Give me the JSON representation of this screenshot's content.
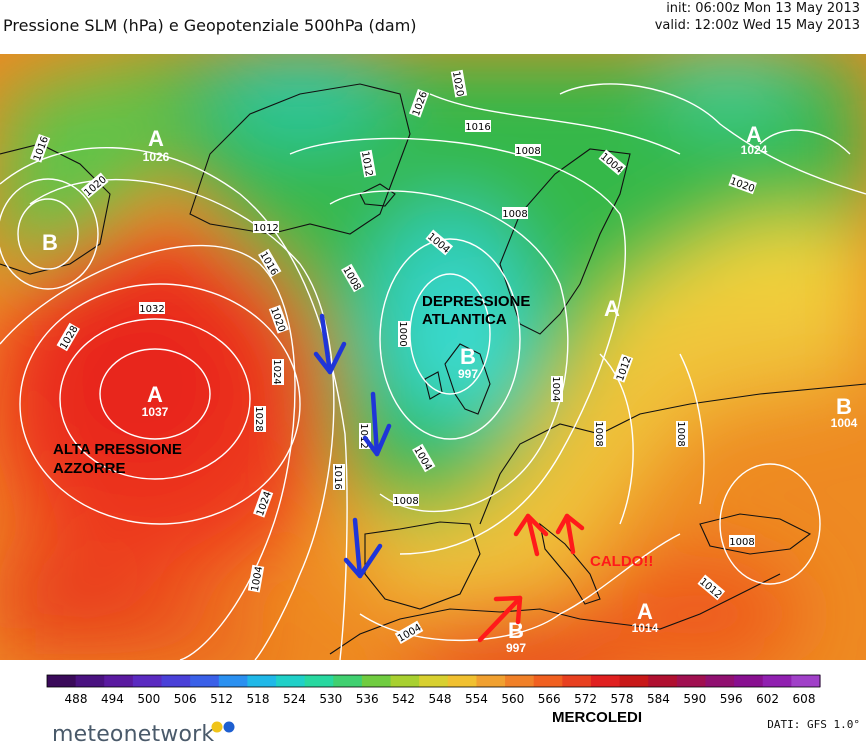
{
  "header": {
    "title": "Pressione SLM (hPa) e Geopotenziale 500hPa (dam)",
    "init": "init: 06:00z Mon 13 May 2013",
    "valid": "valid: 12:00z Wed 15 May 2013"
  },
  "map": {
    "isobar_labels": [
      "1016",
      "1026",
      "1020",
      "1016",
      "1012",
      "1008",
      "1012",
      "1020",
      "1008",
      "1008",
      "1004",
      "1016",
      "1032",
      "1020",
      "1028",
      "1024",
      "1016",
      "1008",
      "1000",
      "1004",
      "1004",
      "1012",
      "1008",
      "1008",
      "1008",
      "1004",
      "1012",
      "1028",
      "1024",
      "1012",
      "1016",
      "1004",
      "1024",
      "1020",
      "1012",
      "1008",
      "1004",
      "1020"
    ],
    "pressure_centres": [
      {
        "letter": "A",
        "value": "1026"
      },
      {
        "letter": "A",
        "value": "1037"
      },
      {
        "letter": "B",
        "value": "997"
      },
      {
        "letter": "B",
        "value": "997"
      },
      {
        "letter": "A",
        "value": "1014"
      },
      {
        "letter": "A",
        "value": "1024"
      },
      {
        "letter": "B",
        "value": "1004"
      },
      {
        "letter": "B",
        "value": ""
      },
      {
        "letter": "A",
        "value": ""
      }
    ],
    "annotations": {
      "low": [
        "DEPRESSIONE",
        "ATLANTICA"
      ],
      "high": [
        "ALTA PRESSIONE",
        "AZZORRE"
      ],
      "warm": "CALDO!!"
    },
    "colors": {
      "cold_arrows": "#1f35d8",
      "warm_arrows": "#ff1a1a",
      "warm_label": "#ff1a1a",
      "annotation_text": "#000000",
      "isobars": "#ffffff"
    }
  },
  "colorbar": {
    "unit": "dam",
    "ticks": [
      "488",
      "494",
      "500",
      "506",
      "512",
      "518",
      "524",
      "530",
      "536",
      "542",
      "548",
      "554",
      "560",
      "566",
      "572",
      "578",
      "584",
      "590",
      "596",
      "602",
      "608"
    ]
  },
  "footer": {
    "brand": "meteonetwork",
    "day": "MERCOLEDI",
    "source": "DATI: GFS 1.0°"
  }
}
